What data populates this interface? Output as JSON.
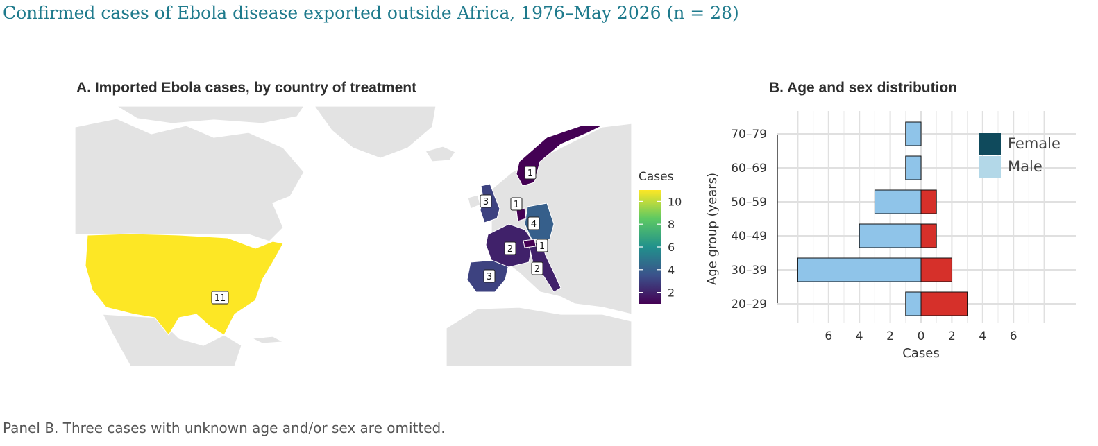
{
  "title": "Confirmed cases of Ebola disease exported outside Africa, 1976–May 2026 (n = 28)",
  "footnote": "Panel B. Three cases with unknown age and/or sex are omitted.",
  "colors": {
    "title": "#1e7a8c",
    "land": "#e3e3e3",
    "female": "#d6302a",
    "male": "#8fc4e9",
    "legend_female": "#0f4a5c",
    "legend_male": "#b3d8e8",
    "scale": [
      "#440154",
      "#3b528b",
      "#21918c",
      "#5ec962",
      "#fde725"
    ]
  },
  "chart_data": [
    {
      "type": "map",
      "title": "A. Imported Ebola cases, by country of treatment",
      "legend_title": "Cases",
      "legend_ticks": [
        2,
        4,
        6,
        8,
        10
      ],
      "scale_range": [
        1,
        11
      ],
      "regions": [
        {
          "name": "United States",
          "value": 11
        },
        {
          "name": "United Kingdom",
          "value": 3
        },
        {
          "name": "Spain",
          "value": 3
        },
        {
          "name": "Germany",
          "value": 4
        },
        {
          "name": "France",
          "value": 2
        },
        {
          "name": "Italy",
          "value": 2
        },
        {
          "name": "Norway",
          "value": 1
        },
        {
          "name": "Netherlands",
          "value": 1
        },
        {
          "name": "Switzerland",
          "value": 1
        }
      ]
    },
    {
      "type": "bar",
      "title": "B. Age and sex distribution",
      "orientation": "horizontal-population-pyramid",
      "categories": [
        "20–29",
        "30–39",
        "40–49",
        "50–59",
        "60–69",
        "70–79"
      ],
      "series": [
        {
          "name": "Female",
          "values": [
            3,
            2,
            1,
            1,
            0,
            0
          ]
        },
        {
          "name": "Male",
          "values": [
            1,
            8,
            4,
            3,
            1,
            1
          ]
        }
      ],
      "xlabel": "Cases",
      "ylabel": "Age group (years)",
      "xticks": [
        "6",
        "4",
        "2",
        "0",
        "2",
        "4",
        "6"
      ],
      "xlim": [
        -8,
        8
      ],
      "grid": true,
      "legend_position": "top-right"
    }
  ]
}
